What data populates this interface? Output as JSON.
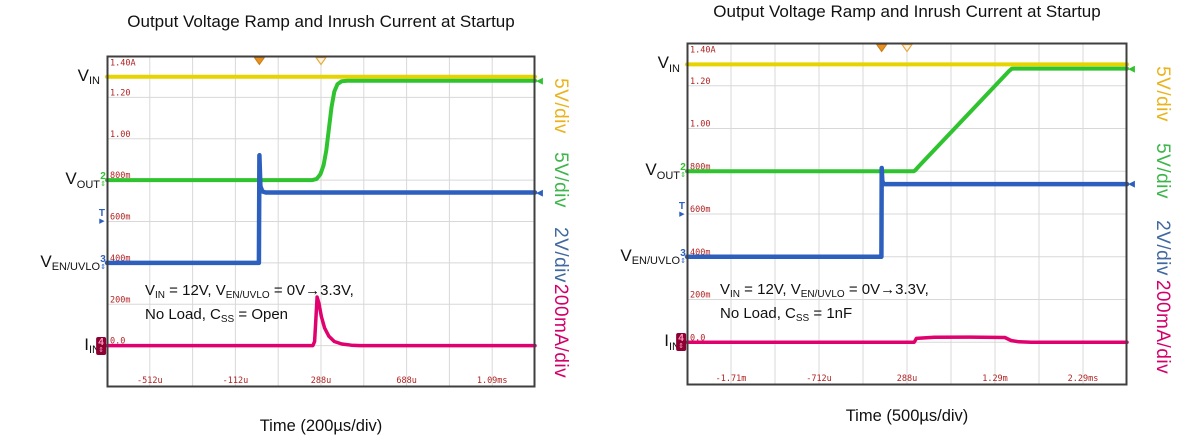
{
  "chart_data": [
    {
      "type": "line",
      "title": "Output Voltage Ramp and Inrush Current at Startup",
      "xlabel": "Time (200µs/div)",
      "x_unit": "µs",
      "x_divisions": 10,
      "y_divisions": 8,
      "x_range": [
        -712,
        1288
      ],
      "x_ticks": [
        {
          "t": -512,
          "label": "-512u"
        },
        {
          "t": -112,
          "label": "-112u"
        },
        {
          "t": 288,
          "label": "288u"
        },
        {
          "t": 688,
          "label": "688u"
        },
        {
          "t": 1088,
          "label": "1.09ms"
        }
      ],
      "y_axis_labels": [
        {
          "div": 8,
          "label": "1.40A"
        },
        {
          "div": 7,
          "label": "1.20"
        },
        {
          "div": 6,
          "label": "1.00"
        },
        {
          "div": 5,
          "label": "800m"
        },
        {
          "div": 4,
          "label": "600m"
        },
        {
          "div": 3,
          "label": "400m"
        },
        {
          "div": 2,
          "label": "200m"
        },
        {
          "div": 1,
          "label": "0.0"
        }
      ],
      "trigger": {
        "position_t": 0,
        "reference_t": 288,
        "level_div": 4.1,
        "symbol": "T"
      },
      "annotation": {
        "line1": [
          {
            "t": "V"
          },
          {
            "sub": "IN"
          },
          {
            "t": " = 12V, V"
          },
          {
            "sub": "EN/UVLO"
          },
          {
            "t": " = 0V→3.3V,"
          }
        ],
        "line2": [
          {
            "t": "No Load, C"
          },
          {
            "sub": "SS"
          },
          {
            "t": " = Open"
          }
        ]
      },
      "channels": [
        {
          "name": "V_IN",
          "label": {
            "t": "V",
            "sub": "IN"
          },
          "scale": "5V/div",
          "unit": "V",
          "units_per_div": 5,
          "zero_div": 5.1,
          "color": "#e6d400",
          "label_color": "#eab31c",
          "stroke": 4,
          "marker": null,
          "edge_arrow": false,
          "points": [
            [
              -712,
              12
            ],
            [
              1288,
              12
            ]
          ]
        },
        {
          "name": "V_OUT",
          "label": {
            "t": "V",
            "sub": "OUT"
          },
          "scale": "5V/div",
          "unit": "V",
          "units_per_div": 5,
          "zero_div": 5,
          "color": "#2fc32f",
          "label_color": "#3cb54a",
          "stroke": 4,
          "marker": "2",
          "edge_arrow": true,
          "points": [
            [
              -712,
              0
            ],
            [
              248,
              0
            ],
            [
              268,
              0.15
            ],
            [
              285,
              0.7
            ],
            [
              300,
              1.8
            ],
            [
              313,
              3.6
            ],
            [
              325,
              6.2
            ],
            [
              337,
              8.8
            ],
            [
              350,
              10.7
            ],
            [
              365,
              11.6
            ],
            [
              385,
              11.95
            ],
            [
              410,
              12
            ],
            [
              1288,
              12
            ]
          ]
        },
        {
          "name": "V_EN/UVLO",
          "label": {
            "t": "V",
            "sub": "EN/UVLO"
          },
          "scale": "2V/div",
          "unit": "V",
          "units_per_div": 2,
          "zero_div": 3,
          "color": "#2d5fbe",
          "label_color": "#41699f",
          "stroke": 4.5,
          "marker": "3",
          "edge_arrow": true,
          "points": [
            [
              -712,
              0
            ],
            [
              -2,
              0
            ],
            [
              0,
              5.2
            ],
            [
              5,
              3.7
            ],
            [
              14,
              3.45
            ],
            [
              30,
              3.4
            ],
            [
              1288,
              3.4
            ]
          ]
        },
        {
          "name": "I_IN",
          "label": {
            "t": "I",
            "sub": "IN"
          },
          "scale": "200mA/div",
          "unit": "A",
          "units_per_div": 0.2,
          "zero_div": 1,
          "color": "#e0006e",
          "label_color": "#d4006a",
          "stroke": 3.5,
          "marker": "4",
          "marker_boxed": true,
          "edge_arrow": false,
          "points": [
            [
              -712,
              0
            ],
            [
              250,
              0
            ],
            [
              258,
              0.02
            ],
            [
              264,
              0.13
            ],
            [
              270,
              0.235
            ],
            [
              278,
              0.205
            ],
            [
              290,
              0.14
            ],
            [
              305,
              0.085
            ],
            [
              325,
              0.045
            ],
            [
              350,
              0.02
            ],
            [
              385,
              0.008
            ],
            [
              430,
              0.002
            ],
            [
              470,
              0
            ],
            [
              1288,
              0
            ]
          ]
        }
      ]
    },
    {
      "type": "line",
      "title": "Output Voltage Ramp and Inrush Current at Startup",
      "xlabel": "Time (500µs/div)",
      "x_unit": "µs",
      "x_divisions": 10,
      "y_divisions": 8,
      "x_range": [
        -2212,
        2788
      ],
      "x_ticks": [
        {
          "t": -1712,
          "label": "-1.71m"
        },
        {
          "t": -712,
          "label": "-712u"
        },
        {
          "t": 288,
          "label": "288u"
        },
        {
          "t": 1288,
          "label": "1.29m"
        },
        {
          "t": 2288,
          "label": "2.29ms"
        }
      ],
      "y_axis_labels": [
        {
          "div": 8,
          "label": "1.40A"
        },
        {
          "div": 7,
          "label": "1.20"
        },
        {
          "div": 6,
          "label": "1.00"
        },
        {
          "div": 5,
          "label": "800m"
        },
        {
          "div": 4,
          "label": "600m"
        },
        {
          "div": 3,
          "label": "400m"
        },
        {
          "div": 2,
          "label": "200m"
        },
        {
          "div": 1,
          "label": "0.0"
        }
      ],
      "trigger": {
        "position_t": 0,
        "reference_t": 288,
        "level_div": 4.1,
        "symbol": "T"
      },
      "annotation": {
        "line1": [
          {
            "t": "V"
          },
          {
            "sub": "IN"
          },
          {
            "t": " = 12V, V"
          },
          {
            "sub": "EN/UVLO"
          },
          {
            "t": " = 0V→3.3V,"
          }
        ],
        "line2": [
          {
            "t": "No Load, C"
          },
          {
            "sub": "SS"
          },
          {
            "t": " = 1nF"
          }
        ]
      },
      "channels": [
        {
          "name": "V_IN",
          "label": {
            "t": "V",
            "sub": "IN"
          },
          "scale": "5V/div",
          "unit": "V",
          "units_per_div": 5,
          "zero_div": 5.1,
          "color": "#e6d400",
          "label_color": "#eab31c",
          "stroke": 4,
          "marker": null,
          "edge_arrow": false,
          "points": [
            [
              -2212,
              12
            ],
            [
              2788,
              12
            ]
          ]
        },
        {
          "name": "V_OUT",
          "label": {
            "t": "V",
            "sub": "OUT"
          },
          "scale": "5V/div",
          "unit": "V",
          "units_per_div": 5,
          "zero_div": 5,
          "color": "#2fc32f",
          "label_color": "#3cb54a",
          "stroke": 4,
          "marker": "2",
          "edge_arrow": true,
          "points": [
            [
              -2212,
              0
            ],
            [
              365,
              0
            ],
            [
              385,
              0.15
            ],
            [
              420,
              0.55
            ],
            [
              1450,
              11.75
            ],
            [
              1478,
              11.98
            ],
            [
              1500,
              12
            ],
            [
              2788,
              12
            ]
          ]
        },
        {
          "name": "V_EN/UVLO",
          "label": {
            "t": "V",
            "sub": "EN/UVLO"
          },
          "scale": "2V/div",
          "unit": "V",
          "units_per_div": 2,
          "zero_div": 3,
          "color": "#2d5fbe",
          "label_color": "#41699f",
          "stroke": 4.5,
          "marker": "3",
          "edge_arrow": true,
          "points": [
            [
              -2212,
              0
            ],
            [
              -3,
              0
            ],
            [
              0,
              4.15
            ],
            [
              7,
              3.55
            ],
            [
              20,
              3.4
            ],
            [
              2788,
              3.4
            ]
          ]
        },
        {
          "name": "I_IN",
          "label": {
            "t": "I",
            "sub": "IN"
          },
          "scale": "200mA/div",
          "unit": "A",
          "units_per_div": 0.2,
          "zero_div": 1,
          "color": "#e0006e",
          "label_color": "#d4006a",
          "stroke": 3.5,
          "marker": "4",
          "marker_boxed": true,
          "edge_arrow": false,
          "points": [
            [
              -2212,
              0
            ],
            [
              370,
              0
            ],
            [
              395,
              0.018
            ],
            [
              600,
              0.023
            ],
            [
              1000,
              0.024
            ],
            [
              1400,
              0.022
            ],
            [
              1470,
              0.008
            ],
            [
              1560,
              0.002
            ],
            [
              1700,
              0
            ],
            [
              2788,
              0
            ]
          ]
        }
      ]
    }
  ],
  "colors": {
    "grid": "#d8d8d8",
    "border": "#3f3f3f",
    "axis_text": "#b22222",
    "trigger_marker_fill": "#e89020",
    "trigger_marker_stroke": "#c87a10",
    "reference_marker_stroke": "#e8a840",
    "channel4_box": "#8c0032"
  }
}
